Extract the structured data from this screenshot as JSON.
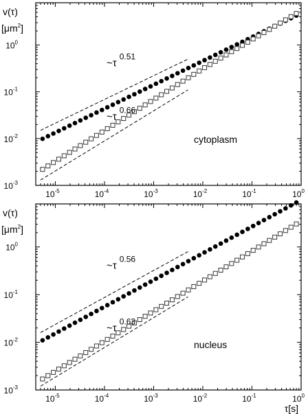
{
  "chart_data": [
    {
      "type": "scatter",
      "xscale": "log",
      "yscale": "log",
      "xlim": [
        4e-06,
        1
      ],
      "ylim": [
        0.001,
        8
      ],
      "ylabel_line1": "v(τ)",
      "ylabel_line2_base": "[μm",
      "ylabel_line2_exp": "2",
      "ylabel_line2_end": "]",
      "xticks": [
        "10",
        "10",
        "10",
        "10",
        "10",
        "10"
      ],
      "xtick_exps": [
        "-5",
        "-4",
        "-3",
        "-2",
        "-1",
        "0"
      ],
      "xtick_values": [
        1e-05,
        0.0001,
        0.001,
        0.01,
        0.1,
        1
      ],
      "yticks": [
        "10",
        "10",
        "10",
        "10"
      ],
      "ytick_exps": [
        "-3",
        "-2",
        "-1",
        "0"
      ],
      "ytick_values": [
        0.001,
        0.01,
        0.1,
        1
      ],
      "panel_label": "cytoplasm",
      "series": [
        {
          "marker": "filled-circle",
          "color": "#000000",
          "start_x": 5.5e-06,
          "end_x": 0.8,
          "n": 48,
          "segments": [
            [
              5.5e-06,
              0.0099,
              0.51
            ],
            [
              0.8,
              4.0,
              0.45
            ]
          ]
        },
        {
          "marker": "open-square",
          "color": "#333333",
          "start_x": 5.5e-06,
          "end_x": 0.8,
          "n": 48,
          "segments": [
            [
              5.5e-06,
              0.0022,
              0.66
            ],
            [
              0.01,
              0.3,
              0.62
            ],
            [
              0.8,
              4.3,
              0.56
            ]
          ]
        }
      ],
      "reference_lines": [
        {
          "x": [
            5e-06,
            0.005
          ],
          "y": [
            0.015,
            0.5
          ]
        },
        {
          "x": [
            5e-06,
            0.005
          ],
          "y": [
            0.0013,
            0.11
          ]
        }
      ],
      "annotations": [
        {
          "text": "~τ",
          "exponent": "0.51",
          "x": 0.0004,
          "y": 0.35
        },
        {
          "text": "~τ",
          "exponent": "0.66",
          "x": 0.0004,
          "y": 0.025
        }
      ]
    },
    {
      "type": "scatter",
      "xscale": "log",
      "yscale": "log",
      "xlim": [
        4e-06,
        1
      ],
      "ylim": [
        0.001,
        8
      ],
      "ylabel_line1": "v(τ)",
      "ylabel_line2_base": "[μm",
      "ylabel_line2_exp": "2",
      "ylabel_line2_end": "]",
      "xlabel": "τ[s]",
      "xticks": [
        "10",
        "10",
        "10",
        "10",
        "10",
        "10"
      ],
      "xtick_exps": [
        "-5",
        "-4",
        "-3",
        "-2",
        "-1",
        "0"
      ],
      "xtick_values": [
        1e-05,
        0.0001,
        0.001,
        0.01,
        0.1,
        1
      ],
      "yticks": [
        "10",
        "10",
        "10",
        "10"
      ],
      "ytick_exps": [
        "-3",
        "-2",
        "-1",
        "0"
      ],
      "ytick_values": [
        0.001,
        0.01,
        0.1,
        1
      ],
      "panel_label": "nucleus",
      "series": [
        {
          "marker": "filled-circle",
          "color": "#000000",
          "start_x": 5.5e-06,
          "end_x": 0.8,
          "n": 48,
          "segments": [
            [
              5.5e-06,
              0.011,
              0.56
            ],
            [
              0.8,
              6.0,
              0.52
            ]
          ]
        },
        {
          "marker": "open-square",
          "color": "#333333",
          "start_x": 5.5e-06,
          "end_x": 0.8,
          "n": 48,
          "segments": [
            [
              5.5e-06,
              0.0017,
              0.63
            ],
            [
              0.8,
              3.3,
              0.58
            ]
          ]
        }
      ],
      "reference_lines": [
        {
          "x": [
            5e-06,
            0.005
          ],
          "y": [
            0.016,
            0.8
          ]
        },
        {
          "x": [
            5e-06,
            0.005
          ],
          "y": [
            0.0012,
            0.09
          ]
        }
      ],
      "annotations": [
        {
          "text": "~τ",
          "exponent": "0.56",
          "x": 0.0004,
          "y": 0.35
        },
        {
          "text": "~τ",
          "exponent": "0.63",
          "x": 0.0004,
          "y": 0.017
        }
      ]
    }
  ]
}
